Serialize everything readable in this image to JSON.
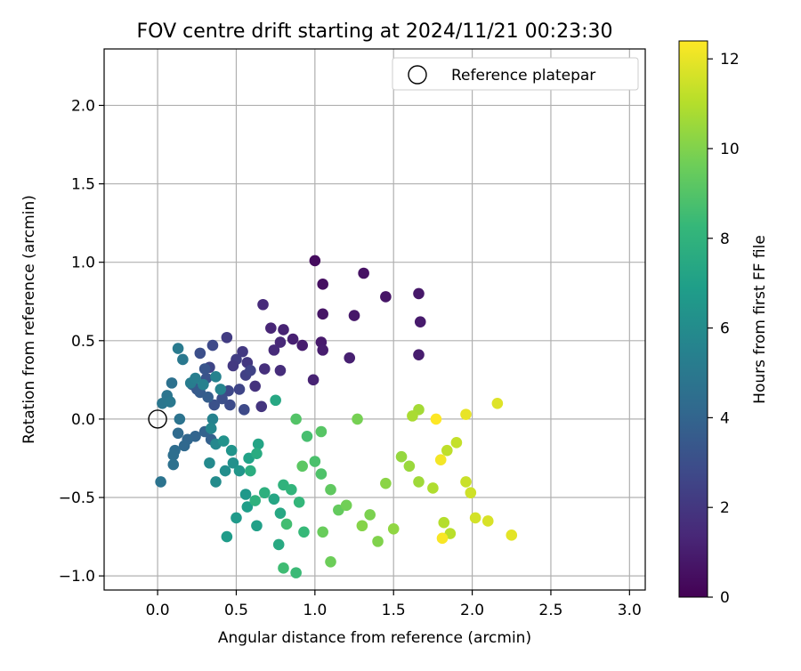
{
  "chart_data": {
    "type": "scatter",
    "title": "FOV centre drift starting at 2024/11/21 00:23:30",
    "xlabel": "Angular distance from reference (arcmin)",
    "ylabel": "Rotation from reference (arcmin)",
    "xlim": [
      -0.34,
      3.1
    ],
    "ylim": [
      -1.09,
      2.36
    ],
    "xticks": [
      0.0,
      0.5,
      1.0,
      1.5,
      2.0,
      2.5,
      3.0
    ],
    "xtick_labels": [
      "0.0",
      "0.5",
      "1.0",
      "1.5",
      "2.0",
      "2.5",
      "3.0"
    ],
    "yticks": [
      -1.0,
      -0.5,
      0.0,
      0.5,
      1.0,
      1.5,
      2.0
    ],
    "ytick_labels": [
      "−1.0",
      "−0.5",
      "0.0",
      "0.5",
      "1.0",
      "1.5",
      "2.0"
    ],
    "grid": true,
    "legend": {
      "placement": "top-right",
      "entries": [
        "Reference platepar"
      ]
    },
    "reference_point": {
      "x": 0.0,
      "y": 0.0
    },
    "colorbar": {
      "label": "Hours from first FF file",
      "range": [
        0,
        12.4
      ],
      "ticks": [
        0,
        2,
        4,
        6,
        8,
        10,
        12
      ],
      "tick_labels": [
        "0",
        "2",
        "4",
        "6",
        "8",
        "10",
        "12"
      ],
      "colormap": "viridis",
      "colors": [
        "#440154",
        "#482878",
        "#3e4989",
        "#31688e",
        "#26828e",
        "#1f9e89",
        "#35b779",
        "#6ece58",
        "#b5de2b",
        "#fde725"
      ]
    },
    "series": [
      {
        "points": [
          [
            1.0,
            1.01,
            0.4
          ],
          [
            1.05,
            0.86,
            0.5
          ],
          [
            1.31,
            0.93,
            0.6
          ],
          [
            1.45,
            0.78,
            0.7
          ],
          [
            1.66,
            0.8,
            0.8
          ],
          [
            1.67,
            0.62,
            0.9
          ],
          [
            1.66,
            0.41,
            1.0
          ],
          [
            1.05,
            0.67,
            0.7
          ],
          [
            1.25,
            0.66,
            0.8
          ],
          [
            1.04,
            0.49,
            0.9
          ],
          [
            1.05,
            0.44,
            1.0
          ],
          [
            1.22,
            0.39,
            1.1
          ],
          [
            0.99,
            0.25,
            1.2
          ],
          [
            0.92,
            0.47,
            1.0
          ],
          [
            0.86,
            0.51,
            1.1
          ],
          [
            0.8,
            0.57,
            1.2
          ],
          [
            0.72,
            0.58,
            1.3
          ],
          [
            0.78,
            0.49,
            1.4
          ],
          [
            0.74,
            0.44,
            1.5
          ],
          [
            0.78,
            0.31,
            1.6
          ],
          [
            0.67,
            0.73,
            1.5
          ],
          [
            0.68,
            0.32,
            1.7
          ],
          [
            0.62,
            0.21,
            1.8
          ],
          [
            0.66,
            0.08,
            1.9
          ],
          [
            0.57,
            0.36,
            2.0
          ],
          [
            0.54,
            0.43,
            2.1
          ],
          [
            0.44,
            0.52,
            2.2
          ],
          [
            0.5,
            0.38,
            2.3
          ],
          [
            0.48,
            0.34,
            2.1
          ],
          [
            0.56,
            0.28,
            2.4
          ],
          [
            0.59,
            0.31,
            2.5
          ],
          [
            0.52,
            0.19,
            2.6
          ],
          [
            0.45,
            0.18,
            2.7
          ],
          [
            0.55,
            0.06,
            2.8
          ],
          [
            0.46,
            0.09,
            2.9
          ],
          [
            0.41,
            0.13,
            3.0
          ],
          [
            0.36,
            0.09,
            3.1
          ],
          [
            0.31,
            0.26,
            3.2
          ],
          [
            0.33,
            0.33,
            2.6
          ],
          [
            0.3,
            0.32,
            3.3
          ],
          [
            0.27,
            0.42,
            3.0
          ],
          [
            0.35,
            0.47,
            2.8
          ],
          [
            0.25,
            0.19,
            3.4
          ],
          [
            0.22,
            0.22,
            3.5
          ],
          [
            0.27,
            0.17,
            3.6
          ],
          [
            0.32,
            0.14,
            3.7
          ],
          [
            0.34,
            -0.13,
            3.8
          ],
          [
            0.3,
            -0.08,
            3.9
          ],
          [
            0.24,
            -0.11,
            4.0
          ],
          [
            0.19,
            -0.13,
            4.1
          ],
          [
            0.17,
            -0.17,
            4.2
          ],
          [
            0.13,
            -0.09,
            4.3
          ],
          [
            0.11,
            -0.2,
            4.4
          ],
          [
            0.1,
            -0.23,
            4.5
          ],
          [
            0.1,
            -0.29,
            4.6
          ],
          [
            0.02,
            -0.4,
            4.7
          ],
          [
            0.06,
            0.15,
            4.8
          ],
          [
            0.09,
            0.23,
            4.6
          ],
          [
            0.14,
            0.0,
            4.7
          ],
          [
            0.03,
            0.1,
            4.9
          ],
          [
            0.08,
            0.11,
            5.0
          ],
          [
            0.16,
            0.38,
            5.0
          ],
          [
            0.13,
            0.45,
            5.1
          ],
          [
            0.21,
            0.23,
            5.2
          ],
          [
            0.24,
            0.26,
            5.3
          ],
          [
            0.29,
            0.22,
            5.4
          ],
          [
            0.37,
            0.27,
            5.5
          ],
          [
            0.4,
            0.19,
            5.6
          ],
          [
            0.35,
            0.0,
            5.5
          ],
          [
            0.34,
            -0.06,
            5.7
          ],
          [
            0.37,
            -0.16,
            5.8
          ],
          [
            0.33,
            -0.28,
            5.9
          ],
          [
            0.37,
            -0.4,
            6.0
          ],
          [
            0.43,
            -0.33,
            6.1
          ],
          [
            0.48,
            -0.28,
            6.2
          ],
          [
            0.42,
            -0.14,
            6.3
          ],
          [
            0.47,
            -0.2,
            6.4
          ],
          [
            0.52,
            -0.33,
            6.5
          ],
          [
            0.56,
            -0.48,
            6.6
          ],
          [
            0.5,
            -0.63,
            6.7
          ],
          [
            0.44,
            -0.75,
            6.8
          ],
          [
            0.57,
            -0.56,
            6.9
          ],
          [
            0.63,
            -0.68,
            7.0
          ],
          [
            0.58,
            -0.25,
            7.1
          ],
          [
            0.64,
            -0.16,
            7.2
          ],
          [
            0.74,
            -0.51,
            7.3
          ],
          [
            0.78,
            -0.6,
            7.4
          ],
          [
            0.77,
            -0.8,
            7.5
          ],
          [
            0.75,
            0.12,
            7.4
          ],
          [
            0.63,
            -0.22,
            7.6
          ],
          [
            0.59,
            -0.33,
            7.7
          ],
          [
            0.68,
            -0.47,
            7.8
          ],
          [
            0.62,
            -0.52,
            7.9
          ],
          [
            0.8,
            -0.42,
            8.0
          ],
          [
            0.85,
            -0.45,
            8.1
          ],
          [
            0.9,
            -0.53,
            8.2
          ],
          [
            0.93,
            -0.72,
            8.3
          ],
          [
            0.88,
            -0.98,
            8.4
          ],
          [
            0.8,
            -0.95,
            8.5
          ],
          [
            0.82,
            -0.67,
            8.6
          ],
          [
            0.95,
            -0.11,
            8.7
          ],
          [
            1.0,
            -0.27,
            8.8
          ],
          [
            1.04,
            -0.35,
            8.9
          ],
          [
            0.88,
            0.0,
            9.0
          ],
          [
            1.04,
            -0.08,
            9.1
          ],
          [
            0.92,
            -0.3,
            9.2
          ],
          [
            1.1,
            -0.45,
            9.3
          ],
          [
            1.15,
            -0.58,
            9.4
          ],
          [
            1.05,
            -0.72,
            9.5
          ],
          [
            1.1,
            -0.91,
            9.6
          ],
          [
            1.2,
            -0.55,
            9.7
          ],
          [
            1.27,
            -0.0,
            9.8
          ],
          [
            1.35,
            -0.61,
            9.9
          ],
          [
            1.4,
            -0.78,
            10.0
          ],
          [
            1.3,
            -0.68,
            10.1
          ],
          [
            1.45,
            -0.41,
            10.2
          ],
          [
            1.5,
            -0.7,
            10.3
          ],
          [
            1.55,
            -0.24,
            10.4
          ],
          [
            1.6,
            -0.3,
            10.5
          ],
          [
            1.66,
            -0.4,
            10.6
          ],
          [
            1.66,
            0.06,
            10.7
          ],
          [
            1.62,
            0.02,
            10.8
          ],
          [
            1.75,
            -0.44,
            10.9
          ],
          [
            1.82,
            -0.66,
            11.0
          ],
          [
            1.86,
            -0.73,
            11.1
          ],
          [
            1.84,
            -0.2,
            11.2
          ],
          [
            1.9,
            -0.15,
            11.3
          ],
          [
            1.96,
            -0.4,
            11.4
          ],
          [
            1.99,
            -0.47,
            11.5
          ],
          [
            2.02,
            -0.63,
            11.6
          ],
          [
            2.1,
            -0.65,
            11.7
          ],
          [
            2.16,
            0.1,
            11.8
          ],
          [
            2.25,
            -0.74,
            11.9
          ],
          [
            1.96,
            0.03,
            12.0
          ],
          [
            1.8,
            -0.26,
            12.2
          ],
          [
            1.81,
            -0.76,
            12.3
          ],
          [
            1.77,
            0.0,
            12.4
          ]
        ]
      }
    ]
  }
}
